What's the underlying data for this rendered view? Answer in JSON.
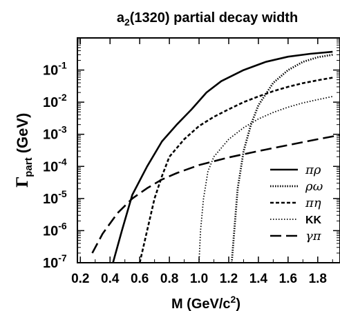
{
  "chart_data": {
    "type": "line",
    "title": "a",
    "title_sub": "2",
    "title_rest": "(1320) partial decay width",
    "xlabel_main": "M (GeV/c",
    "xlabel_sup": "2",
    "xlabel_end": ")",
    "ylabel_main": "Γ",
    "ylabel_sub": "part",
    "ylabel_end": " (GeV)",
    "xlim": [
      0.18,
      1.95
    ],
    "ylim_exponents": [
      -7,
      0
    ],
    "y_scale": "log",
    "x_ticks": [
      "0.2",
      "0.4",
      "0.6",
      "0.8",
      "1.0",
      "1.2",
      "1.4",
      "1.6",
      "1.8"
    ],
    "x_tick_values": [
      0.2,
      0.4,
      0.6,
      0.8,
      1.0,
      1.2,
      1.4,
      1.6,
      1.8
    ],
    "y_tick_exponents": [
      "-7",
      "-6",
      "-5",
      "-4",
      "-3",
      "-2",
      "-1"
    ],
    "y_tick_base": "10",
    "legend_position": "bottom-right",
    "series": [
      {
        "name": "πρ",
        "style": "solid",
        "x": [
          0.42,
          0.48,
          0.55,
          0.65,
          0.75,
          0.85,
          0.95,
          1.05,
          1.15,
          1.3,
          1.45,
          1.6,
          1.75,
          1.9
        ],
        "y": [
          1e-07,
          1e-06,
          1.3e-05,
          0.0001,
          0.0006,
          0.002,
          0.006,
          0.02,
          0.045,
          0.1,
          0.18,
          0.26,
          0.32,
          0.37
        ]
      },
      {
        "name": "ρω",
        "style": "dotted-thick",
        "x": [
          1.22,
          1.26,
          1.3,
          1.35,
          1.4,
          1.5,
          1.6,
          1.7,
          1.8,
          1.9
        ],
        "y": [
          1e-07,
          2e-05,
          0.0003,
          0.002,
          0.008,
          0.04,
          0.1,
          0.18,
          0.25,
          0.3
        ]
      },
      {
        "name": "πη",
        "style": "short-dash",
        "x": [
          0.6,
          0.65,
          0.7,
          0.75,
          0.8,
          0.9,
          1.0,
          1.1,
          1.2,
          1.3,
          1.4,
          1.5,
          1.6,
          1.7,
          1.8,
          1.9
        ],
        "y": [
          1e-07,
          1e-06,
          1e-05,
          5e-05,
          0.0002,
          0.0007,
          0.0018,
          0.0035,
          0.006,
          0.01,
          0.015,
          0.022,
          0.03,
          0.039,
          0.048,
          0.058
        ]
      },
      {
        "name": "KK",
        "style": "dotted",
        "x": [
          1.0,
          1.01,
          1.03,
          1.06,
          1.1,
          1.2,
          1.3,
          1.4,
          1.5,
          1.6,
          1.7,
          1.8,
          1.9
        ],
        "y": [
          1e-07,
          1e-06,
          1e-05,
          7e-05,
          0.0002,
          0.0007,
          0.0016,
          0.003,
          0.0048,
          0.007,
          0.0095,
          0.012,
          0.015
        ]
      },
      {
        "name": "γπ",
        "style": "long-dash",
        "x": [
          0.28,
          0.35,
          0.45,
          0.55,
          0.65,
          0.75,
          0.85,
          1.0,
          1.2,
          1.4,
          1.6,
          1.8,
          1.95
        ],
        "y": [
          2e-07,
          8e-07,
          3.5e-06,
          1e-05,
          2.1e-05,
          3.9e-05,
          6.2e-05,
          0.00011,
          0.00019,
          0.0003,
          0.00046,
          0.0007,
          0.00095
        ]
      }
    ],
    "legend": [
      {
        "label": "πρ",
        "italic": true
      },
      {
        "label": "ρω",
        "italic": true
      },
      {
        "label": "πη",
        "italic": true
      },
      {
        "label": "KK",
        "italic": false
      },
      {
        "label": "γπ",
        "italic": true
      }
    ]
  }
}
